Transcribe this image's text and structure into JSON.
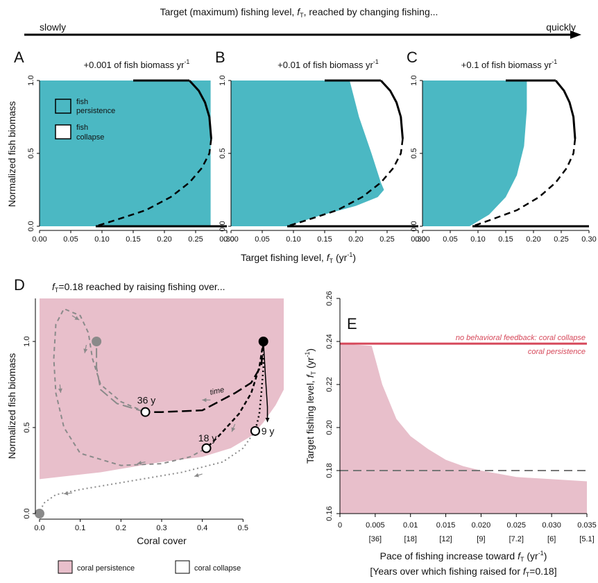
{
  "colors": {
    "teal": "#4bb8c3",
    "pink": "#e8bfcb",
    "red": "#d6485a",
    "grey": "#8a8a8a",
    "black": "#000000"
  },
  "header": {
    "title_pre": "Target (maximum) fishing level, ",
    "title_sym": "f",
    "title_sub": "T",
    "title_post": ", reached by changing fishing...",
    "slowly": "slowly",
    "quickly": "quickly"
  },
  "top_shared_xlabel_pre": "Target fishing level, ",
  "top_shared_xlabel_sym": "f",
  "top_shared_xlabel_sub": "T",
  "top_shared_xlabel_post": " (yr",
  "top_shared_xlabel_sup": "-1",
  "top_shared_xlabel_end": ")",
  "ylabel_top": "Normalized fish biomass",
  "legend_top": {
    "persist": "fish persistence_",
    "persist_l1": "fish",
    "persist_l2": "persistence",
    "collapse_l1": "fish",
    "collapse_l2": "collapse"
  },
  "chart_data": [
    {
      "id": "A",
      "type": "area",
      "panel_label": "A",
      "title": "+0.001 of fish biomass yr",
      "title_sup": "-1",
      "xlim": [
        0,
        0.3
      ],
      "ylim": [
        0,
        1
      ],
      "xticks": [
        "0.00",
        "0.05",
        "0.10",
        "0.15",
        "0.20",
        "0.25",
        "0.30"
      ],
      "yticks": [
        "0.0",
        "0.5",
        "1.0"
      ],
      "persistence_boundary": [
        [
          0,
          0
        ],
        [
          0,
          1
        ],
        [
          0.274,
          1
        ],
        [
          0.274,
          0
        ]
      ]
    },
    {
      "id": "B",
      "type": "area",
      "panel_label": "B",
      "title": "+0.01 of fish biomass yr",
      "title_sup": "-1",
      "xlim": [
        0,
        0.3
      ],
      "ylim": [
        0,
        1
      ],
      "xticks": [
        "0.00",
        "0.05",
        "0.10",
        "0.15",
        "0.20",
        "0.25",
        "0.30"
      ],
      "yticks": [
        "0.0",
        "0.5",
        "1.0"
      ],
      "persistence_boundary": [
        [
          0,
          0
        ],
        [
          0.09,
          0
        ],
        [
          0.14,
          0.07
        ],
        [
          0.2,
          0.14
        ],
        [
          0.235,
          0.2
        ],
        [
          0.245,
          0.25
        ],
        [
          0.24,
          0.3
        ],
        [
          0.225,
          0.5
        ],
        [
          0.205,
          0.75
        ],
        [
          0.19,
          1.0
        ],
        [
          0,
          1
        ]
      ]
    },
    {
      "id": "C",
      "type": "area",
      "panel_label": "C",
      "title": "+0.1 of fish biomass yr",
      "title_sup": "-1",
      "xlim": [
        0,
        0.3
      ],
      "ylim": [
        0,
        1
      ],
      "xticks": [
        "0.00",
        "0.05",
        "0.10",
        "0.15",
        "0.20",
        "0.25",
        "0.30"
      ],
      "yticks": [
        "0.0",
        "0.5",
        "1.0"
      ],
      "persistence_boundary": [
        [
          0,
          0
        ],
        [
          0.085,
          0
        ],
        [
          0.12,
          0.08
        ],
        [
          0.15,
          0.2
        ],
        [
          0.17,
          0.35
        ],
        [
          0.183,
          0.55
        ],
        [
          0.188,
          0.8
        ],
        [
          0.188,
          1.0
        ],
        [
          0,
          1
        ]
      ]
    },
    {
      "id": "D",
      "type": "area",
      "panel_label": "D",
      "title_sym": "f",
      "title_sub": "T",
      "title_post": "=0.18 reached by raising fishing over...",
      "xlabel": "Coral cover",
      "ylabel": "Normalized fish biomass",
      "xlim": [
        0,
        0.6
      ],
      "ylim": [
        0,
        1.25
      ],
      "xticks": [
        "0.0",
        "0.1",
        "0.2",
        "0.3",
        "0.4",
        "0.5"
      ],
      "yticks": [
        "0.0",
        "0.5",
        "1.0"
      ],
      "annotations": [
        "36 y",
        "18 y",
        "9 y",
        "time"
      ],
      "legend": [
        "coral persistence",
        "coral collapse"
      ],
      "persistence_region": [
        [
          0,
          0.2
        ],
        [
          0.3,
          0.3
        ],
        [
          0.42,
          0.35
        ],
        [
          0.5,
          0.45
        ],
        [
          0.55,
          0.55
        ],
        [
          0.6,
          0.72
        ],
        [
          0.6,
          1.25
        ],
        [
          0,
          1.25
        ]
      ]
    },
    {
      "id": "E",
      "type": "area",
      "panel_label": "E",
      "xlabel_pre": "Pace of fishing increase toward ",
      "xlabel_sym": "f",
      "xlabel_sub": "T",
      "xlabel_post": " (yr",
      "xlabel_sup": "-1",
      "xlabel_end": ")",
      "xlabel2_pre": "[Years over which fishing raised for ",
      "xlabel2_sym": "f",
      "xlabel2_sub": "T",
      "xlabel2_post": "=0.18]",
      "ylabel_pre": "Target fishing level, ",
      "ylabel_sym": "f",
      "ylabel_sub": "T",
      "ylabel_post": " (yr",
      "ylabel_sup": "-1",
      "ylabel_end": ")",
      "xlim": [
        0,
        0.035
      ],
      "ylim": [
        0.16,
        0.26
      ],
      "xticks": [
        "0",
        "0.005",
        "0.01",
        "0.015",
        "0.020",
        "0.025",
        "0.030",
        "0.035"
      ],
      "xticks2": [
        "[36]",
        "[18]",
        "[12]",
        "[9]",
        "[7.2]",
        "[6]",
        "[5.1]"
      ],
      "yticks": [
        "0.16",
        "0.18",
        "0.20",
        "0.22",
        "0.24",
        "0.26"
      ],
      "no_feedback_level": 0.239,
      "no_feedback_label": "no behavioral feedback: coral collapse",
      "persistence_label": "coral persistence",
      "dashed_level": 0.18,
      "threshold_curve": [
        [
          0,
          0.239
        ],
        [
          0.0045,
          0.238
        ],
        [
          0.005,
          0.232
        ],
        [
          0.006,
          0.22
        ],
        [
          0.008,
          0.204
        ],
        [
          0.01,
          0.196
        ],
        [
          0.0125,
          0.19
        ],
        [
          0.015,
          0.185
        ],
        [
          0.0175,
          0.182
        ],
        [
          0.02,
          0.18
        ],
        [
          0.025,
          0.177
        ],
        [
          0.03,
          0.176
        ],
        [
          0.035,
          0.175
        ]
      ]
    }
  ]
}
